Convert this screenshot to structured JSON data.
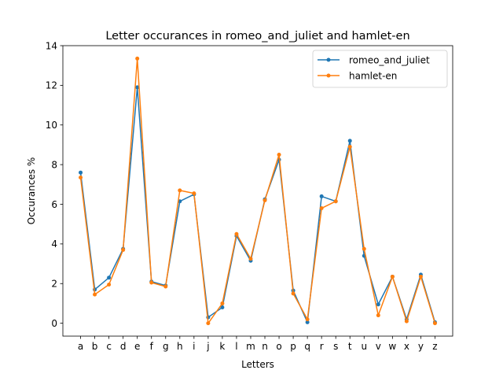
{
  "chart_data": {
    "type": "line",
    "title": "Letter occurances in romeo_and_juliet and hamlet-en",
    "xlabel": "Letters",
    "ylabel": "Occurances %",
    "categories": [
      "a",
      "b",
      "c",
      "d",
      "e",
      "f",
      "g",
      "h",
      "i",
      "j",
      "k",
      "l",
      "m",
      "n",
      "o",
      "p",
      "q",
      "r",
      "s",
      "t",
      "u",
      "v",
      "w",
      "x",
      "y",
      "z"
    ],
    "ylim": [
      -0.65,
      14
    ],
    "yticks": [
      0,
      2,
      4,
      6,
      8,
      10,
      12,
      14
    ],
    "ytick_labels": [
      "0",
      "2",
      "4",
      "6",
      "8",
      "10",
      "12",
      "14"
    ],
    "grid": false,
    "legend_position": "upper right",
    "series": [
      {
        "name": "romeo_and_juliet",
        "color": "#1f77b4",
        "values": [
          7.6,
          1.7,
          2.3,
          3.75,
          11.9,
          2.1,
          1.9,
          6.15,
          6.5,
          0.3,
          0.8,
          4.4,
          3.15,
          6.25,
          8.25,
          1.65,
          0.05,
          6.4,
          6.15,
          9.2,
          3.4,
          0.95,
          2.35,
          0.2,
          2.45,
          0.05
        ]
      },
      {
        "name": "hamlet-en",
        "color": "#ff7f0e",
        "values": [
          7.35,
          1.45,
          1.95,
          3.7,
          13.35,
          2.05,
          1.85,
          6.7,
          6.55,
          0.0,
          1.0,
          4.5,
          3.25,
          6.2,
          8.5,
          1.5,
          0.2,
          5.8,
          6.15,
          8.9,
          3.75,
          0.4,
          2.35,
          0.1,
          2.35,
          0.0
        ]
      }
    ]
  }
}
